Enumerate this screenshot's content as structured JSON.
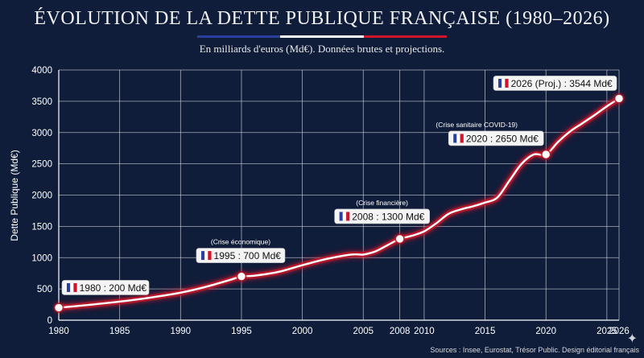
{
  "header": {
    "title": "ÉVOLUTION DE LA DETTE PUBLIQUE FRANÇAISE (1980–2026)",
    "subtitle": "En milliards d'euros (Md€). Données brutes et projections."
  },
  "footer": {
    "source": "Sources : Insee, Eurostat, Trésor Public. Design éditorial français"
  },
  "colors": {
    "background": "#0f1d3a",
    "line": "#ffffff",
    "glow": "#d0142a",
    "flag_blue": "#2a3fa0",
    "flag_white": "#ffffff",
    "flag_red": "#d0142a"
  },
  "chart_data": {
    "type": "line",
    "title": "ÉVOLUTION DE LA DETTE PUBLIQUE FRANÇAISE (1980–2026)",
    "subtitle": "En milliards d'euros (Md€). Données brutes et projections.",
    "xlabel": "",
    "ylabel": "Dette Publique (Md€)",
    "x_ticks": [
      1980,
      1985,
      1990,
      1995,
      2000,
      2005,
      2008,
      2010,
      2015,
      2020,
      2025,
      2026
    ],
    "y_ticks": [
      0,
      500,
      1000,
      1500,
      2000,
      2500,
      3000,
      3500,
      4000
    ],
    "ylim": [
      0,
      4000
    ],
    "grid": true,
    "series": [
      {
        "x": [
          1980,
          1982,
          1984,
          1986,
          1988,
          1990,
          1992,
          1994,
          1995,
          1996,
          1998,
          2000,
          2002,
          2004,
          2005,
          2006,
          2007,
          2008,
          2009,
          2010,
          2011,
          2012,
          2013,
          2014,
          2015,
          2016,
          2017,
          2018,
          2019,
          2020,
          2021,
          2022,
          2023,
          2024,
          2025,
          2026
        ],
        "y": [
          200,
          235,
          275,
          320,
          375,
          440,
          530,
          640,
          700,
          710,
          770,
          880,
          980,
          1050,
          1050,
          1100,
          1200,
          1300,
          1350,
          1420,
          1550,
          1700,
          1770,
          1820,
          1880,
          1960,
          2230,
          2500,
          2650,
          2650,
          2850,
          3020,
          3150,
          3280,
          3420,
          3544
        ]
      }
    ],
    "markers": [
      {
        "x": 1980,
        "y": 200,
        "label": "1980 : 200 Md€",
        "note": ""
      },
      {
        "x": 1995,
        "y": 700,
        "label": "1995 : 700 Md€",
        "note": "(Crise économique)"
      },
      {
        "x": 2008,
        "y": 1300,
        "label": "2008 : 1300 Md€",
        "note": "(Crise financière)"
      },
      {
        "x": 2020,
        "y": 2650,
        "label": "2020 : 2650 Md€",
        "note": "(Crise sanitaire COVID-19)"
      },
      {
        "x": 2026,
        "y": 3544,
        "label": "2026 (Proj.) : 3544 Md€",
        "note": ""
      }
    ]
  }
}
